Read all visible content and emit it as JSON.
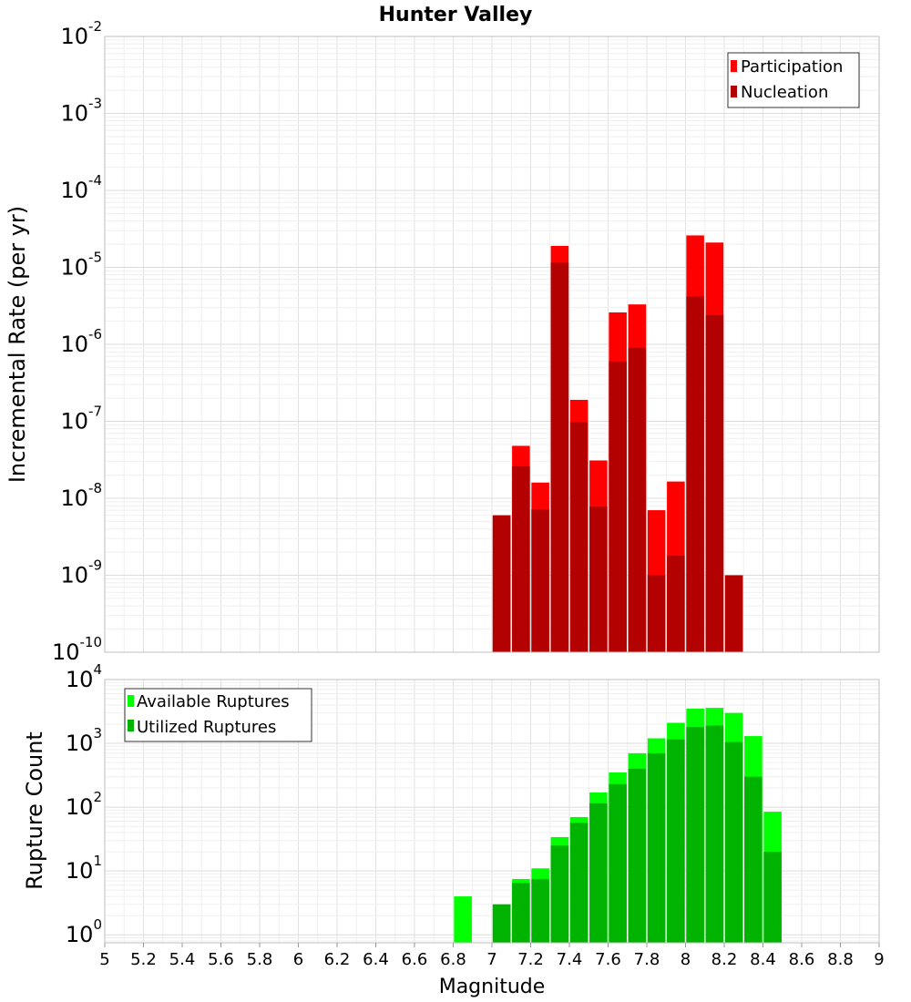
{
  "chart_data": [
    {
      "type": "bar",
      "title": "Hunter Valley",
      "xlabel": "",
      "ylabel": "Incremental Rate (per yr)",
      "yscale": "log",
      "ylim": [
        1e-10,
        0.01
      ],
      "xlim": [
        5,
        9
      ],
      "grid": true,
      "legend_position": "top-right",
      "y_ticks": [
        {
          "base": "10",
          "exp": "-10"
        },
        {
          "base": "10",
          "exp": "-9"
        },
        {
          "base": "10",
          "exp": "-8"
        },
        {
          "base": "10",
          "exp": "-7"
        },
        {
          "base": "10",
          "exp": "-6"
        },
        {
          "base": "10",
          "exp": "-5"
        },
        {
          "base": "10",
          "exp": "-4"
        },
        {
          "base": "10",
          "exp": "-3"
        },
        {
          "base": "10",
          "exp": "-2"
        }
      ],
      "x": [
        7.05,
        7.15,
        7.25,
        7.35,
        7.45,
        7.55,
        7.65,
        7.75,
        7.85,
        7.95,
        8.05,
        8.15,
        8.25
      ],
      "series": [
        {
          "name": "Participation",
          "color": "#ff0000",
          "values": [
            6e-09,
            4.8e-08,
            1.6e-08,
            1.9e-05,
            1.9e-07,
            3.1e-08,
            2.6e-06,
            3.3e-06,
            7e-09,
            1.65e-08,
            2.6e-05,
            2.1e-05,
            1e-09
          ]
        },
        {
          "name": "Nucleation",
          "color": "#b30000",
          "values": [
            6e-09,
            2.6e-08,
            7.2e-09,
            1.15e-05,
            9.8e-08,
            7.8e-09,
            6e-07,
            9e-07,
            1e-09,
            1.8e-09,
            4.2e-06,
            2.4e-06,
            1e-09
          ]
        }
      ]
    },
    {
      "type": "bar",
      "title": "",
      "xlabel": "Magnitude",
      "ylabel": "Rupture Count",
      "yscale": "log",
      "ylim": [
        0.75,
        10000
      ],
      "xlim": [
        5,
        9
      ],
      "grid": true,
      "legend_position": "top-left",
      "x_ticks": [
        "5",
        "5.2",
        "5.4",
        "5.6",
        "5.8",
        "6",
        "6.2",
        "6.4",
        "6.6",
        "6.8",
        "7",
        "7.2",
        "7.4",
        "7.6",
        "7.8",
        "8",
        "8.2",
        "8.4",
        "8.6",
        "8.8",
        "9"
      ],
      "y_ticks": [
        {
          "base": "10",
          "exp": "0"
        },
        {
          "base": "10",
          "exp": "1"
        },
        {
          "base": "10",
          "exp": "2"
        },
        {
          "base": "10",
          "exp": "3"
        },
        {
          "base": "10",
          "exp": "4"
        }
      ],
      "x": [
        6.85,
        7.05,
        7.15,
        7.25,
        7.35,
        7.45,
        7.55,
        7.65,
        7.75,
        7.85,
        7.95,
        8.05,
        8.15,
        8.25,
        8.35,
        8.45
      ],
      "series": [
        {
          "name": "Available Ruptures",
          "color": "#00ff00",
          "values": [
            4,
            3,
            7.5,
            11,
            34,
            70,
            170,
            350,
            700,
            1200,
            2100,
            3500,
            3600,
            3000,
            1300,
            85
          ]
        },
        {
          "name": "Utilized Ruptures",
          "color": "#00b300",
          "values": [
            0,
            3,
            6.5,
            7.5,
            25,
            57,
            115,
            230,
            400,
            700,
            1150,
            1800,
            1900,
            1050,
            300,
            20
          ]
        }
      ]
    }
  ]
}
